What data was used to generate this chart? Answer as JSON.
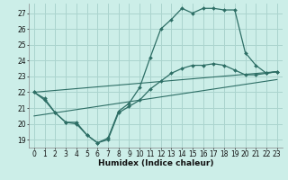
{
  "xlabel": "Humidex (Indice chaleur)",
  "bg_color": "#cceee8",
  "grid_color": "#aad4ce",
  "line_color": "#2d6e65",
  "xlim": [
    -0.5,
    23.5
  ],
  "ylim": [
    18.5,
    27.6
  ],
  "yticks": [
    19,
    20,
    21,
    22,
    23,
    24,
    25,
    26,
    27
  ],
  "xticks": [
    0,
    1,
    2,
    3,
    4,
    5,
    6,
    7,
    8,
    9,
    10,
    11,
    12,
    13,
    14,
    15,
    16,
    17,
    18,
    19,
    20,
    21,
    22,
    23
  ],
  "lines": [
    {
      "x": [
        0,
        1,
        2,
        3,
        4,
        5,
        6,
        7,
        8,
        9,
        10,
        11,
        12,
        13,
        14,
        15,
        16,
        17,
        18,
        19,
        20,
        21,
        22,
        23
      ],
      "y": [
        22.0,
        21.6,
        20.7,
        20.1,
        20.1,
        19.3,
        18.8,
        19.1,
        20.8,
        21.3,
        22.3,
        24.2,
        26.0,
        26.6,
        27.3,
        27.0,
        27.3,
        27.3,
        27.2,
        27.2,
        24.5,
        23.7,
        23.2,
        23.3
      ],
      "marker": true
    },
    {
      "x": [
        0,
        1,
        2,
        3,
        4,
        5,
        6,
        7,
        8,
        9,
        10,
        11,
        12,
        13,
        14,
        15,
        16,
        17,
        18,
        19,
        20,
        21,
        22,
        23
      ],
      "y": [
        22.0,
        21.5,
        20.7,
        20.1,
        20.0,
        19.3,
        18.8,
        19.0,
        20.7,
        21.1,
        21.5,
        22.2,
        22.7,
        23.2,
        23.5,
        23.7,
        23.7,
        23.8,
        23.7,
        23.4,
        23.1,
        23.1,
        23.2,
        23.3
      ],
      "marker": true
    },
    {
      "x": [
        0,
        23
      ],
      "y": [
        22.0,
        23.3
      ],
      "marker": false
    },
    {
      "x": [
        0,
        23
      ],
      "y": [
        20.5,
        22.8
      ],
      "marker": false
    }
  ]
}
